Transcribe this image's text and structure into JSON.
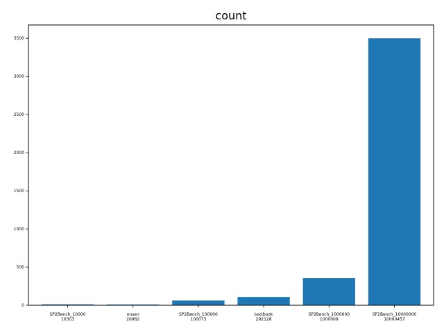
{
  "chart_data": {
    "type": "bar",
    "title": "count",
    "xlabel": "",
    "ylabel": "",
    "categories": [
      [
        "SP2Bench_10000",
        "10303"
      ],
      [
        "onsen",
        "26962"
      ],
      [
        "SP2Bench_100000",
        "100073"
      ],
      [
        "textbook",
        "292128"
      ],
      [
        "SP2Bench_1000000",
        "1000009"
      ],
      [
        "SP2Bench_10000000",
        "10000457"
      ]
    ],
    "values": [
      12,
      10,
      62,
      108,
      355,
      3500
    ],
    "ylim": [
      0,
      3675
    ],
    "yticks": [
      0,
      500,
      1000,
      1500,
      2000,
      2500,
      3000,
      3500
    ],
    "bar_color": "#1f77b4",
    "grid": false,
    "legend": "none"
  }
}
